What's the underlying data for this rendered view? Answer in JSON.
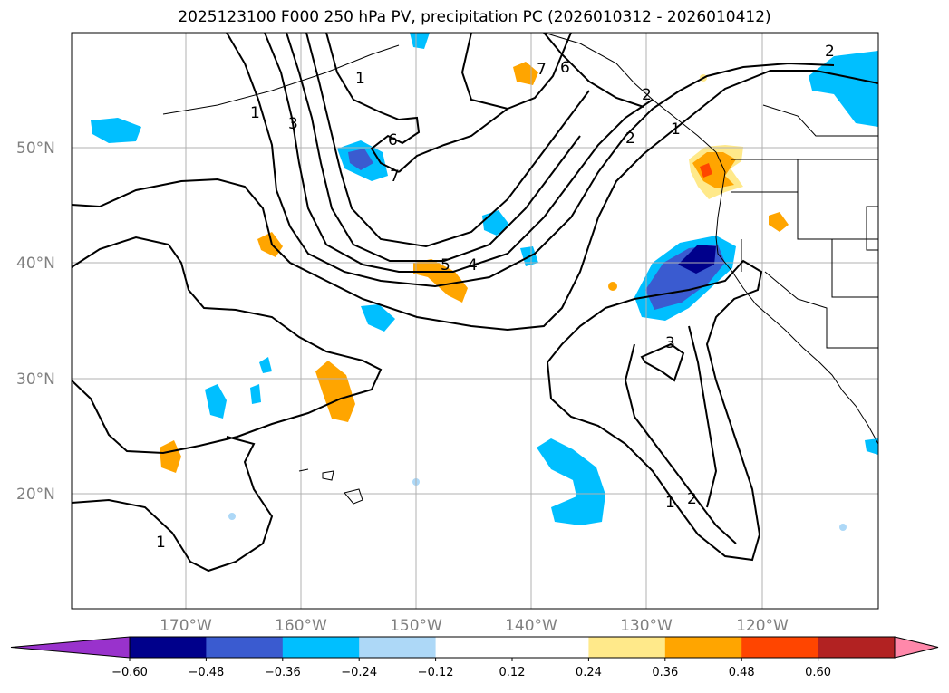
{
  "title": "2025123100 F000 250 hPa PV, precipitation PC (2026010312 - 2026010412)",
  "map": {
    "lat_labels": [
      "50°N",
      "40°N",
      "30°N",
      "20°N"
    ],
    "lon_labels": [
      "170°W",
      "160°W",
      "150°W",
      "140°W",
      "130°W",
      "120°W"
    ],
    "pv_contour_labels": [
      "1",
      "3",
      "6",
      "7",
      "5",
      "4",
      "2",
      "1",
      "7",
      "6",
      "2",
      "1",
      "3",
      "1",
      "2",
      "1",
      "2"
    ]
  },
  "colorbar": {
    "colors": [
      "#9932cc",
      "#00008b",
      "#3a5bd0",
      "#00bfff",
      "#add8f7",
      "#ffffff",
      "#ffffff",
      "#ffe98a",
      "#ffa500",
      "#ff4500",
      "#b22222",
      "#ff88aa"
    ],
    "tick_labels": [
      "−0.60",
      "−0.48",
      "−0.36",
      "−0.24",
      "−0.12",
      "0.12",
      "0.24",
      "0.36",
      "0.48",
      "0.60"
    ]
  }
}
